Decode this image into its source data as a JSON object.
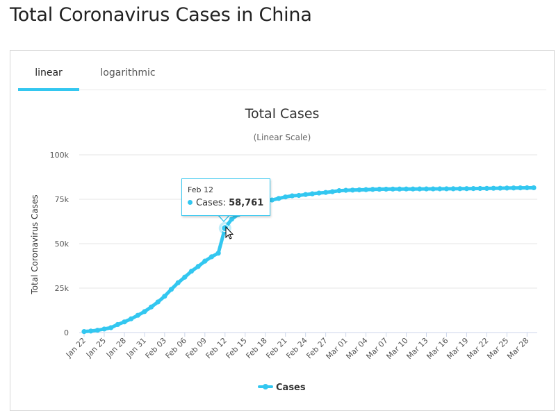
{
  "page": {
    "title": "Total Coronavirus Cases in China"
  },
  "tabs": [
    {
      "label": "linear",
      "active": true
    },
    {
      "label": "logarithmic",
      "active": false
    }
  ],
  "colors": {
    "accent": "#33c7f0",
    "grid": "#e6e6e6",
    "text": "#333333"
  },
  "tooltip": {
    "date": "Feb 12",
    "series": "Cases",
    "separator": ": ",
    "value": "58,761"
  },
  "chart_data": {
    "type": "line",
    "title": "Total Cases",
    "subtitle": "(Linear Scale)",
    "xlabel": "",
    "ylabel": "Total Coronavirus Cases",
    "ylim": [
      0,
      100000
    ],
    "y_ticks": [
      0,
      25000,
      50000,
      75000,
      100000
    ],
    "y_tick_labels": [
      "0",
      "25k",
      "50k",
      "75k",
      "100k"
    ],
    "x_tick_labels": [
      "Jan 22",
      "Jan 25",
      "Jan 28",
      "Jan 31",
      "Feb 03",
      "Feb 06",
      "Feb 09",
      "Feb 12",
      "Feb 15",
      "Feb 18",
      "Feb 21",
      "Feb 24",
      "Feb 27",
      "Mar 01",
      "Mar 04",
      "Mar 07",
      "Mar 10",
      "Mar 13",
      "Mar 16",
      "Mar 19",
      "Mar 22",
      "Mar 25",
      "Mar 28"
    ],
    "grid": true,
    "legend": "bottom-center",
    "categories": [
      "Jan 22",
      "Jan 23",
      "Jan 24",
      "Jan 25",
      "Jan 26",
      "Jan 27",
      "Jan 28",
      "Jan 29",
      "Jan 30",
      "Jan 31",
      "Feb 01",
      "Feb 02",
      "Feb 03",
      "Feb 04",
      "Feb 05",
      "Feb 06",
      "Feb 07",
      "Feb 08",
      "Feb 09",
      "Feb 10",
      "Feb 11",
      "Feb 12",
      "Feb 13",
      "Feb 14",
      "Feb 15",
      "Feb 16",
      "Feb 17",
      "Feb 18",
      "Feb 19",
      "Feb 20",
      "Feb 21",
      "Feb 22",
      "Feb 23",
      "Feb 24",
      "Feb 25",
      "Feb 26",
      "Feb 27",
      "Feb 28",
      "Feb 29",
      "Mar 01",
      "Mar 02",
      "Mar 03",
      "Mar 04",
      "Mar 05",
      "Mar 06",
      "Mar 07",
      "Mar 08",
      "Mar 09",
      "Mar 10",
      "Mar 11",
      "Mar 12",
      "Mar 13",
      "Mar 14",
      "Mar 15",
      "Mar 16",
      "Mar 17",
      "Mar 18",
      "Mar 19",
      "Mar 20",
      "Mar 21",
      "Mar 22",
      "Mar 23",
      "Mar 24",
      "Mar 25",
      "Mar 26",
      "Mar 27",
      "Mar 28",
      "Mar 29"
    ],
    "series": [
      {
        "name": "Cases",
        "values": [
          571,
          830,
          1287,
          1975,
          2744,
          4515,
          5974,
          7711,
          9692,
          11791,
          14380,
          17205,
          20438,
          24324,
          28018,
          31161,
          34546,
          37198,
          40171,
          42638,
          44653,
          58761,
          63851,
          66492,
          68500,
          70548,
          72436,
          74185,
          74576,
          75465,
          76288,
          76936,
          77150,
          77658,
          78064,
          78497,
          78824,
          79251,
          79824,
          80026,
          80151,
          80270,
          80409,
          80552,
          80651,
          80695,
          80735,
          80754,
          80778,
          80793,
          80813,
          80824,
          80844,
          80860,
          80881,
          80894,
          80928,
          80967,
          81008,
          81054,
          81093,
          81171,
          81218,
          81285,
          81340,
          81394,
          81439,
          81470
        ]
      }
    ]
  }
}
